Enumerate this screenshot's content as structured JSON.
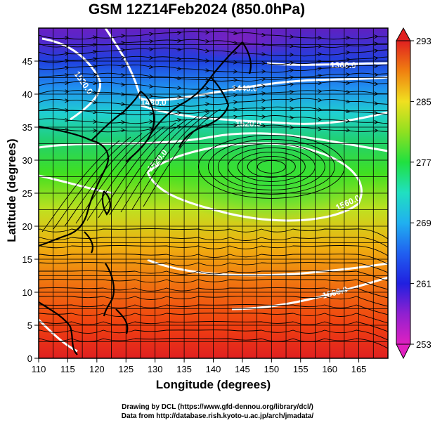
{
  "title": "GSM 12Z14Feb2024 (850.0hPa)",
  "xlabel": "Longitude (degrees)",
  "ylabel": "Latitude  (degrees)",
  "credit_line1": "Drawing by DCL (https://www.gfd-dennou.org/library/dcl/)",
  "credit_line2": "Data from http://database.rish.kyoto-u.ac.jp/arch/jmadata/",
  "colors": {
    "gradient": [
      "#e020c0",
      "#7a20d0",
      "#2020e0",
      "#2090f0",
      "#20e0e0",
      "#20e040",
      "#90e020",
      "#f0e020",
      "#f09010",
      "#f04010",
      "#e02020"
    ],
    "contour": "#ffffff",
    "coast": "#000000",
    "streamline": "#000000"
  },
  "map_data": {
    "type": "contour-map",
    "variable": "temperature with geopotential height contours and wind streamlines",
    "x_range": [
      110,
      170
    ],
    "y_range": [
      0,
      50
    ],
    "x_ticks": [
      "110",
      "115",
      "120",
      "125",
      "130",
      "135",
      "140",
      "145",
      "150",
      "155",
      "160",
      "165"
    ],
    "y_ticks": [
      "0",
      "5",
      "10",
      "15",
      "20",
      "25",
      "30",
      "35",
      "40",
      "45"
    ],
    "colorbar_ticks": [
      "293",
      "285",
      "277",
      "269",
      "261",
      "253"
    ],
    "colorbar_range": [
      253,
      293
    ],
    "contour_labels": [
      "1520.0",
      "1480.0",
      "1440.0",
      "1360.0",
      "1520.0",
      "1520.0",
      "1560.0",
      "1560.0"
    ],
    "high_center": {
      "lon": 150,
      "lat": 29
    }
  }
}
